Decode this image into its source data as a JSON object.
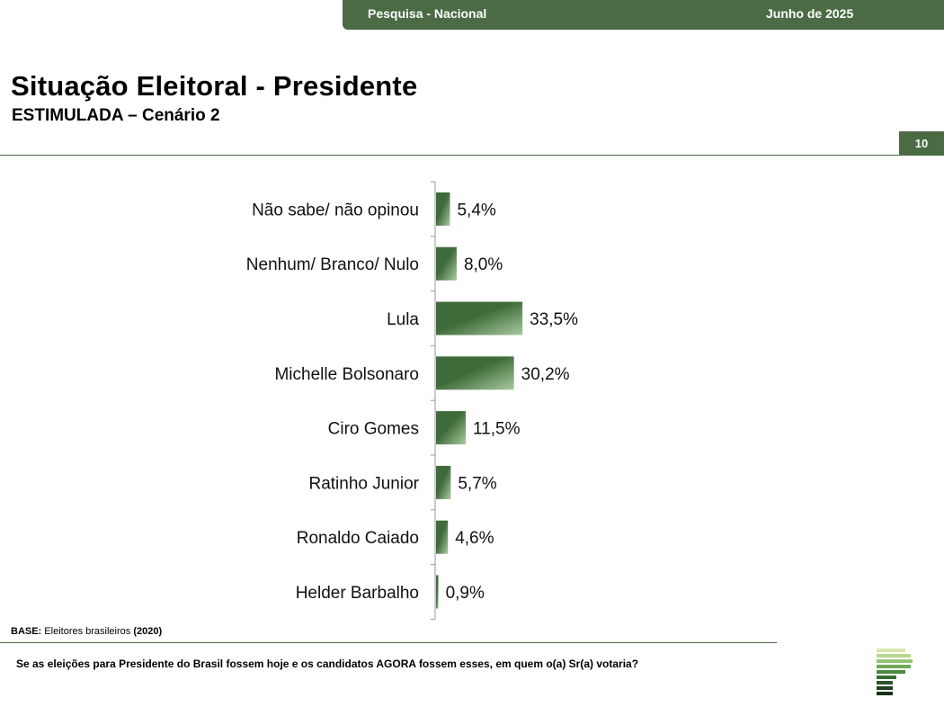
{
  "header": {
    "survey": "Pesquisa - Nacional",
    "date": "Junho de 2025",
    "title": "Situação Eleitoral - Presidente",
    "subtitle": "ESTIMULADA – Cenário 2",
    "page_number": "10"
  },
  "footer": {
    "base_label": "BASE:",
    "base_text": "Eleitores brasileiros",
    "base_count": "(2020)",
    "question": "Se as eleições para Presidente do Brasil fossem hoje e os candidatos AGORA fossem esses, em quem o(a) Sr(a) votaria?"
  },
  "colors": {
    "accent": "#4b6b45",
    "bar": "#3f6b3a",
    "bar_light": "#a9c9a0"
  },
  "chart_data": {
    "type": "bar",
    "orientation": "horizontal",
    "categories": [
      "Não sabe/ não opinou",
      "Nenhum/ Branco/ Nulo",
      "Lula",
      "Michelle Bolsonaro",
      "Ciro Gomes",
      "Ratinho Junior",
      "Ronaldo Caiado",
      "Helder Barbalho"
    ],
    "values": [
      5.4,
      8.0,
      33.5,
      30.2,
      11.5,
      5.7,
      4.6,
      0.9
    ],
    "labels": [
      "5,4%",
      "8,0%",
      "33,5%",
      "30,2%",
      "11,5%",
      "5,7%",
      "4,6%",
      "0,9%"
    ],
    "xlim": [
      0,
      100
    ],
    "grid": false,
    "legend": "none"
  }
}
